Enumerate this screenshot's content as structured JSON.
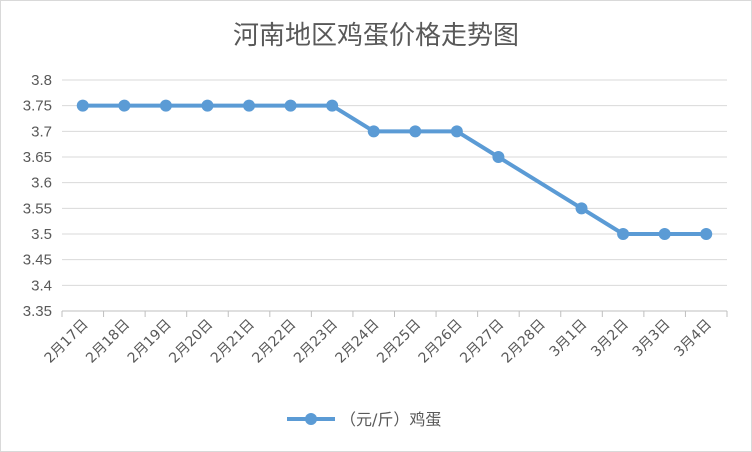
{
  "chart_data": {
    "type": "line",
    "title": "河南地区鸡蛋价格走势图",
    "categories": [
      "2月17日",
      "2月18日",
      "2月19日",
      "2月20日",
      "2月21日",
      "2月22日",
      "2月23日",
      "2月24日",
      "2月25日",
      "2月26日",
      "2月27日",
      "2月28日",
      "3月1日",
      "3月2日",
      "3月3日",
      "3月4日"
    ],
    "series": [
      {
        "name": "（元/斤）鸡蛋",
        "values": [
          3.75,
          3.75,
          3.75,
          3.75,
          3.75,
          3.75,
          3.75,
          3.7,
          3.7,
          3.7,
          3.65,
          null,
          3.55,
          3.5,
          3.5,
          3.5
        ]
      }
    ],
    "yticks": [
      "3.35",
      "3.4",
      "3.45",
      "3.5",
      "3.55",
      "3.6",
      "3.65",
      "3.7",
      "3.75",
      "3.8"
    ],
    "ylim": [
      3.35,
      3.8
    ],
    "grid": true,
    "legend_position": "bottom",
    "colors": {
      "series": "#5b9bd5",
      "grid": "#d9d9d9",
      "axis": "#bfbfbf",
      "text": "#595959"
    }
  }
}
